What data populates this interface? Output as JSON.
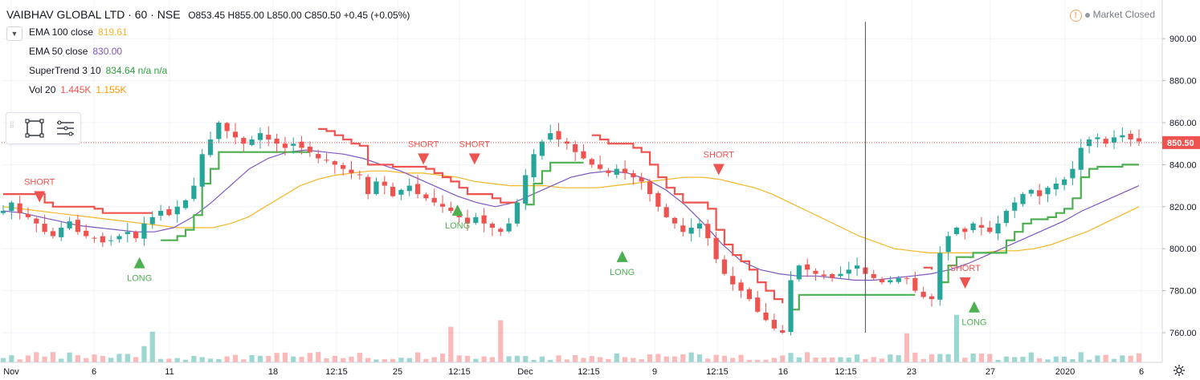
{
  "header": {
    "symbol": "VAIBHAV GLOBAL LTD · 60 · NSE",
    "ohlc": "O853.45  H855.00  L850.00  C850.50  +0.45 (+0.05%)"
  },
  "indicators": [
    {
      "name": "EMA 100 close",
      "value": "819.61",
      "color": "#f5b727"
    },
    {
      "name": "EMA 50 close",
      "value": "830.00",
      "color": "#7e57c2"
    },
    {
      "name": "SuperTrend 3 10",
      "value": "834.64  n/a  n/a",
      "color": "#26a13a"
    },
    {
      "name": "Vol 20",
      "value": "1.445K",
      "value2": "1.155K",
      "color": "#ef5350",
      "color2": "#ff9800"
    }
  ],
  "market_status": "Market Closed",
  "icons": {
    "collapse": "chevron-down-icon",
    "rectangle_tool": "rectangle-icon",
    "list_tool": "object-tree-icon",
    "settings": "gear-icon",
    "warning": "warning-icon"
  },
  "chart_data": {
    "type": "candlestick",
    "y_axis": {
      "range": [
        750,
        910
      ],
      "ticks": [
        760,
        780,
        800,
        820,
        840,
        860,
        880,
        900
      ],
      "side": "right",
      "grid": true
    },
    "last_price": 850.5,
    "last_price_label": "850.50",
    "x_tick_labels": [
      "Nov",
      "6",
      "11",
      "18",
      "12:15",
      "25",
      "12:15",
      "Dec",
      "12:15",
      "9",
      "12:15",
      "16",
      "12:15",
      "23",
      "27",
      "2020",
      "6"
    ],
    "close_series": [
      818,
      822,
      817,
      815,
      812,
      808,
      806,
      810,
      813,
      808,
      806,
      805,
      803,
      804,
      806,
      808,
      805,
      812,
      815,
      818,
      816,
      820,
      823,
      830,
      845,
      852,
      860,
      856,
      853,
      850,
      852,
      855,
      852,
      850,
      848,
      850,
      848,
      846,
      843,
      842,
      840,
      838,
      836,
      835,
      826,
      832,
      830,
      825,
      828,
      830,
      826,
      824,
      822,
      820,
      818,
      815,
      812,
      815,
      812,
      810,
      808,
      812,
      822,
      835,
      845,
      851,
      855,
      852,
      850,
      846,
      843,
      840,
      838,
      836,
      838,
      836,
      834,
      832,
      826,
      820,
      815,
      812,
      808,
      810,
      812,
      805,
      795,
      788,
      783,
      780,
      776,
      770,
      766,
      762,
      760,
      785,
      792,
      790,
      788,
      787,
      786,
      788,
      790,
      792,
      788,
      786,
      784,
      785,
      786,
      786,
      780,
      777,
      776,
      798,
      806,
      810,
      808,
      812,
      810,
      808,
      812,
      818,
      822,
      826,
      828,
      825,
      829,
      831,
      833,
      838,
      848,
      852,
      853,
      850,
      853,
      854,
      852,
      851
    ],
    "ema100_series": [
      820,
      819,
      818,
      817,
      816,
      815,
      814,
      813,
      812,
      811,
      810,
      810,
      810,
      812,
      815,
      820,
      825,
      830,
      833,
      835,
      836,
      837,
      837,
      836,
      836,
      835,
      834,
      832,
      831,
      830,
      830,
      830,
      829,
      829,
      829,
      830,
      831,
      832,
      833,
      834,
      834,
      833,
      831,
      829,
      826,
      822,
      818,
      814,
      810,
      806,
      803,
      800,
      799,
      798,
      798,
      798,
      798,
      799,
      799,
      800,
      802,
      805,
      808,
      812,
      816,
      820
    ],
    "ema50_series": [
      818,
      817,
      815,
      813,
      811,
      810,
      809,
      808,
      808,
      810,
      815,
      822,
      830,
      838,
      843,
      846,
      847,
      846,
      845,
      843,
      840,
      837,
      833,
      829,
      825,
      822,
      820,
      822,
      826,
      830,
      834,
      836,
      837,
      836,
      833,
      828,
      821,
      812,
      802,
      794,
      790,
      788,
      787,
      787,
      786,
      785,
      785,
      786,
      787,
      788,
      790,
      793,
      797,
      801,
      805,
      809,
      813,
      818,
      822,
      826,
      830
    ],
    "supertrend_values": [
      "834.64",
      "n/a",
      "n/a"
    ],
    "signals": [
      {
        "label": "SHORT",
        "type": "short"
      },
      {
        "label": "LONG",
        "type": "long"
      },
      {
        "label": "SHORT",
        "type": "short"
      },
      {
        "label": "LONG",
        "type": "long"
      },
      {
        "label": "SHORT",
        "type": "short"
      },
      {
        "label": "LONG",
        "type": "long"
      },
      {
        "label": "SHORT",
        "type": "short"
      },
      {
        "label": "SHORT",
        "type": "short"
      },
      {
        "label": "LONG",
        "type": "long"
      }
    ],
    "grid": true,
    "colors": {
      "up": "#26a69a",
      "down": "#ef5350",
      "st_up": "#4caf50",
      "st_down": "#ef5350",
      "ema100": "#f5b727",
      "ema50": "#7e57c2",
      "signal_long": "#4caf50",
      "signal_short": "#ef5350"
    }
  }
}
